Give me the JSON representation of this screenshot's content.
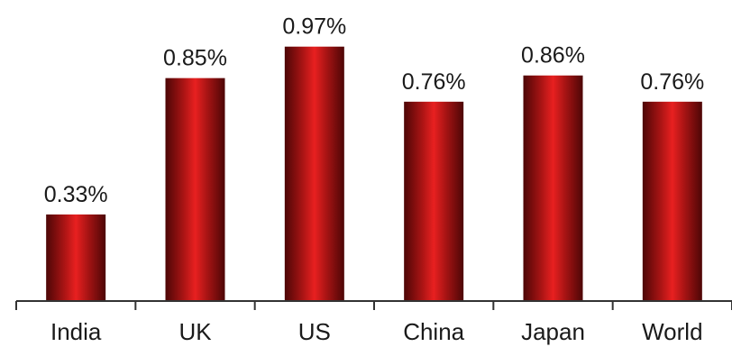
{
  "chart_data": {
    "type": "bar",
    "categories": [
      "India",
      "UK",
      "US",
      "China",
      "Japan",
      "World"
    ],
    "values": [
      0.33,
      0.85,
      0.97,
      0.76,
      0.86,
      0.76
    ],
    "value_labels": [
      "0.33%",
      "0.85%",
      "0.97%",
      "0.76%",
      "0.86%",
      "0.76%"
    ],
    "title": "",
    "xlabel": "",
    "ylabel": "",
    "ylim": [
      0,
      1.0
    ],
    "grid": false,
    "legend": "none",
    "colors": {
      "bar_edge": "#5e0a0a",
      "bar_mid": "#8a1212",
      "bar_center": "#e01c1c",
      "axis": "#333333",
      "text": "#1a1a1a"
    }
  }
}
